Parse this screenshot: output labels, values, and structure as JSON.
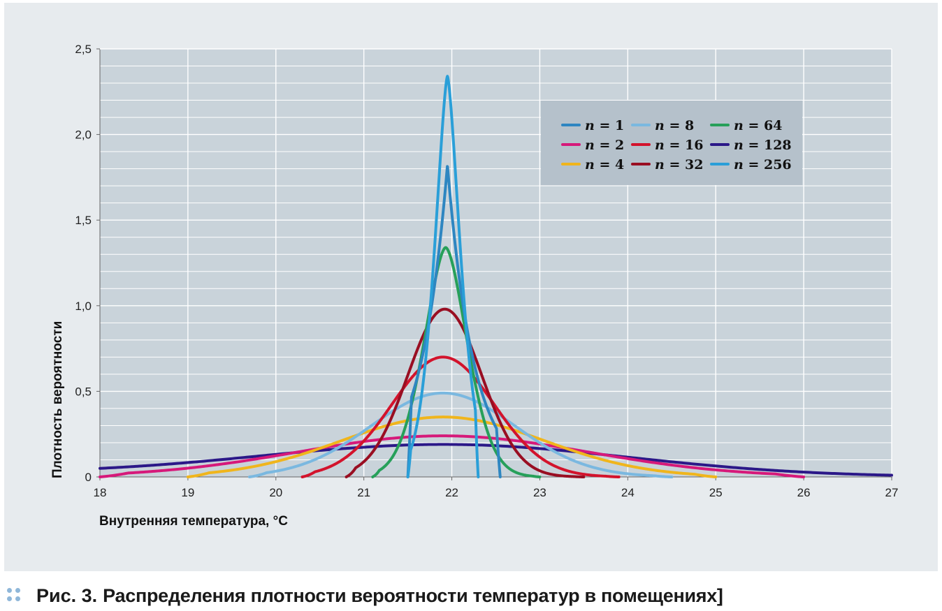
{
  "caption": {
    "label": "Рис. 3.",
    "text": "Распределения плотности вероятности температур в помещениях]"
  },
  "chart_data": {
    "type": "line",
    "xlabel": "Внутренняя температура, °C",
    "ylabel": "Плотность вероятности",
    "xlim": [
      18,
      27
    ],
    "ylim": [
      0,
      2.5
    ],
    "x_ticks": [
      "18",
      "19",
      "20",
      "21",
      "22",
      "23",
      "24",
      "25",
      "26",
      "27"
    ],
    "y_ticks": [
      "0",
      "0,5",
      "1,0",
      "1,5",
      "2,0",
      "2,5"
    ],
    "grid": true,
    "legend_position": "top-right",
    "series": [
      {
        "name": "n = 1",
        "n": "1",
        "color": "#2e86c1",
        "peak_x": 21.95,
        "peak_y": 1.82,
        "width": 0.21,
        "shape": 1,
        "x_min": 21.5,
        "x_max": 22.55
      },
      {
        "name": "n = 2",
        "n": "2",
        "color": "#d6197a",
        "peak_x": 21.9,
        "peak_y": 0.24,
        "width": 1.65,
        "shape": 2,
        "x_min": 18.0,
        "x_max": 26.0
      },
      {
        "name": "n = 4",
        "n": "4",
        "color": "#f0b51c",
        "peak_x": 21.9,
        "peak_y": 0.35,
        "width": 1.15,
        "shape": 2,
        "x_min": 19.0,
        "x_max": 25.0
      },
      {
        "name": "n = 8",
        "n": "8",
        "color": "#7ab8e0",
        "peak_x": 21.9,
        "peak_y": 0.49,
        "width": 0.82,
        "shape": 2,
        "x_min": 19.7,
        "x_max": 24.5
      },
      {
        "name": "n = 16",
        "n": "16",
        "color": "#d3132c",
        "peak_x": 21.9,
        "peak_y": 0.7,
        "width": 0.58,
        "shape": 2,
        "x_min": 20.3,
        "x_max": 23.9
      },
      {
        "name": "n = 32",
        "n": "32",
        "color": "#990e22",
        "peak_x": 21.92,
        "peak_y": 0.98,
        "width": 0.42,
        "shape": 2,
        "x_min": 20.8,
        "x_max": 23.5
      },
      {
        "name": "n = 64",
        "n": "64",
        "color": "#27a05a",
        "peak_x": 21.93,
        "peak_y": 1.34,
        "width": 0.29,
        "shape": 1.7,
        "x_min": 21.1,
        "x_max": 23.0
      },
      {
        "name": "n = 128",
        "n": "128",
        "color": "#2b1888",
        "peak_x": 21.9,
        "peak_y": 0.19,
        "width": 2.1,
        "shape": 2,
        "x_min": 18.0,
        "x_max": 27.0,
        "tail_y_at_18": 0.05
      },
      {
        "name": "n = 256",
        "n": "256",
        "color": "#2a9fd8",
        "peak_x": 21.95,
        "peak_y": 2.34,
        "width": 0.17,
        "shape": 1.5,
        "x_min": 21.5,
        "x_max": 22.3
      }
    ]
  }
}
